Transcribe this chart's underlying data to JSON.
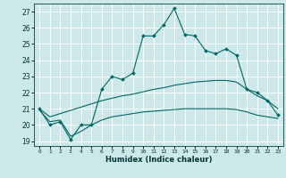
{
  "xlabel": "Humidex (Indice chaleur)",
  "bg_color": "#cde8e8",
  "grid_color": "#b0d0d0",
  "line_color": "#006666",
  "xlim": [
    -0.5,
    23.5
  ],
  "ylim": [
    18.7,
    27.5
  ],
  "xticks": [
    0,
    1,
    2,
    3,
    4,
    5,
    6,
    7,
    8,
    9,
    10,
    11,
    12,
    13,
    14,
    15,
    16,
    17,
    18,
    19,
    20,
    21,
    22,
    23
  ],
  "yticks": [
    19,
    20,
    21,
    22,
    23,
    24,
    25,
    26,
    27
  ],
  "line1_x": [
    0,
    1,
    2,
    3,
    4,
    5,
    6,
    7,
    8,
    9,
    10,
    11,
    12,
    13,
    14,
    15,
    16,
    17,
    18,
    19,
    20,
    21,
    22,
    23
  ],
  "line1_y": [
    21.0,
    20.0,
    20.2,
    19.1,
    20.0,
    20.0,
    22.2,
    23.0,
    22.8,
    23.2,
    25.5,
    25.5,
    26.2,
    27.2,
    25.6,
    25.5,
    24.6,
    24.4,
    24.7,
    24.3,
    22.2,
    22.0,
    21.5,
    20.6
  ],
  "line2_x": [
    0,
    1,
    2,
    3,
    4,
    5,
    6,
    7,
    8,
    9,
    10,
    11,
    12,
    13,
    14,
    15,
    16,
    17,
    18,
    19,
    20,
    21,
    22,
    23
  ],
  "line2_y": [
    21.0,
    20.5,
    20.7,
    20.9,
    21.1,
    21.3,
    21.5,
    21.65,
    21.8,
    21.9,
    22.05,
    22.2,
    22.3,
    22.45,
    22.55,
    22.65,
    22.7,
    22.75,
    22.75,
    22.65,
    22.2,
    21.8,
    21.5,
    21.0
  ],
  "line3_x": [
    0,
    1,
    2,
    3,
    4,
    5,
    6,
    7,
    8,
    9,
    10,
    11,
    12,
    13,
    14,
    15,
    16,
    17,
    18,
    19,
    20,
    21,
    22,
    23
  ],
  "line3_y": [
    20.9,
    20.2,
    20.3,
    19.3,
    19.6,
    20.0,
    20.3,
    20.5,
    20.6,
    20.7,
    20.8,
    20.85,
    20.9,
    20.95,
    21.0,
    21.0,
    21.0,
    21.0,
    21.0,
    20.95,
    20.8,
    20.6,
    20.5,
    20.4
  ],
  "line4_x": [
    0,
    23
  ],
  "line4_y": [
    21.0,
    20.6
  ]
}
